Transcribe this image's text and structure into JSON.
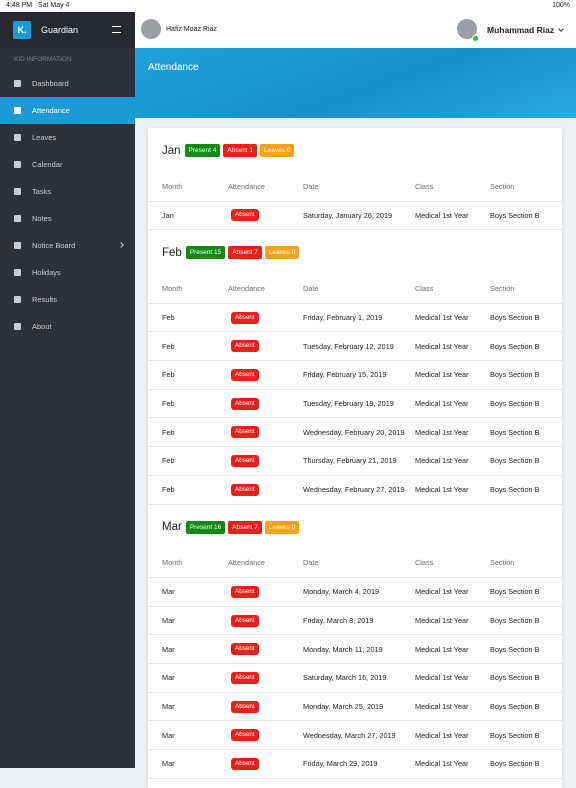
{
  "status_bar": {
    "time": "4:48 PM",
    "date": "Sat May 4",
    "battery": "100%"
  },
  "sidebar": {
    "logo": "K.",
    "brand": "Guardian",
    "section_label": "KID INFORMATION",
    "menu": [
      "Dashboard",
      "Attendance",
      "Leaves",
      "Calendar",
      "Tasks",
      "Notes",
      "Notice Board",
      "Holidays",
      "Results",
      "About"
    ]
  },
  "topbar": {
    "child_name": "Hafiz Moaz Riaz",
    "user_name": "Muhammad Riaz"
  },
  "banner": {
    "title": "Attendance"
  },
  "months": [
    {
      "month": "Jan",
      "present": "Present 4",
      "absent": "Absent 1",
      "leaves": "Leaves 0",
      "columns": [
        "Month",
        "Attendance",
        "Date",
        "Class",
        "Section"
      ],
      "rows": [
        [
          "Jan",
          "Absent",
          "Saturday, January 26, 2019",
          "Medical 1st Year",
          "Boys Section B"
        ]
      ]
    },
    {
      "month": "Feb",
      "present": "Present 15",
      "absent": "Absent 7",
      "leaves": "Leaves 0",
      "columns": [
        "Month",
        "Attendance",
        "Date",
        "Class",
        "Section"
      ],
      "rows": [
        [
          "Feb",
          "Absent",
          "Friday, February 1, 2019",
          "Medical 1st Year",
          "Boys Section B"
        ],
        [
          "Feb",
          "Absent",
          "Tuesday, February 12, 2019",
          "Medical 1st Year",
          "Boys Section B"
        ],
        [
          "Feb",
          "Absent",
          "Friday, February 15, 2019",
          "Medical 1st Year",
          "Boys Section B"
        ],
        [
          "Feb",
          "Absent",
          "Tuesday, February 19, 2019",
          "Medical 1st Year",
          "Boys Section B"
        ],
        [
          "Feb",
          "Absent",
          "Wednesday, February 20, 2019",
          "Medical 1st Year",
          "Boys Section B"
        ],
        [
          "Feb",
          "Absent",
          "Thursday, February 21, 2019",
          "Medical 1st Year",
          "Boys Section B"
        ],
        [
          "Feb",
          "Absent",
          "Wednesday, February 27, 2019",
          "Medical 1st Year",
          "Boys Section B"
        ]
      ]
    },
    {
      "month": "Mar",
      "present": "Present 16",
      "absent": "Absent 7",
      "leaves": "Leaves 0",
      "columns": [
        "Month",
        "Attendance",
        "Date",
        "Class",
        "Section"
      ],
      "rows": [
        [
          "Mar",
          "Absent",
          "Monday, March 4, 2019",
          "Medical 1st Year",
          "Boys Section B"
        ],
        [
          "Mar",
          "Absent",
          "Friday, March 8, 2019",
          "Medical 1st Year",
          "Boys Section B"
        ],
        [
          "Mar",
          "Absent",
          "Monday, March 11, 2019",
          "Medical 1st Year",
          "Boys Section B"
        ],
        [
          "Mar",
          "Absent",
          "Saturday, March 16, 2019",
          "Medical 1st Year",
          "Boys Section B"
        ],
        [
          "Mar",
          "Absent",
          "Monday, March 25, 2019",
          "Medical 1st Year",
          "Boys Section B"
        ],
        [
          "Mar",
          "Absent",
          "Wednesday, March 27, 2019",
          "Medical 1st Year",
          "Boys Section B"
        ],
        [
          "Mar",
          "Absent",
          "Friday, March 29, 2019",
          "Medical 1st Year",
          "Boys Section B"
        ]
      ]
    }
  ]
}
